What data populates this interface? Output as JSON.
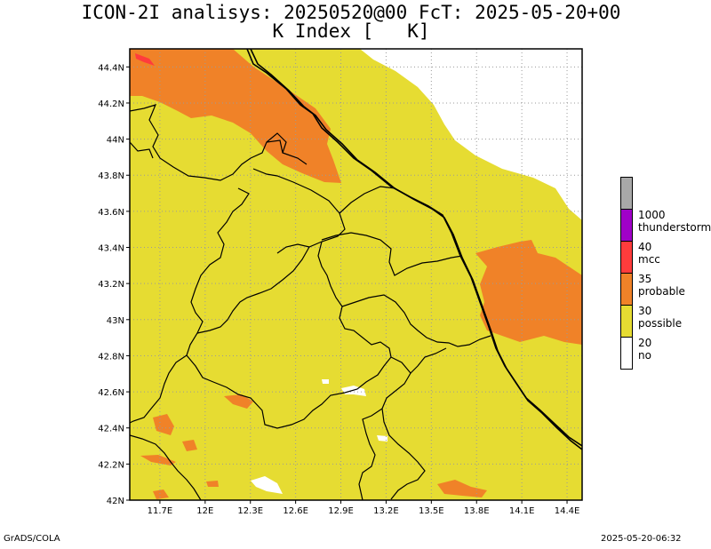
{
  "title": {
    "line1": "ICON-2I analisys: 20250520@00 FcT: 2025-05-20+00",
    "line2": "K Index [   K]"
  },
  "axes": {
    "lat_labels": [
      "44.4N",
      "44.2N",
      "44N",
      "43.8N",
      "43.6N",
      "43.4N",
      "43.2N",
      "43N",
      "42.8N",
      "42.6N",
      "42.4N",
      "42.2N",
      "42N"
    ],
    "lon_labels": [
      "11.7E",
      "12E",
      "12.3E",
      "12.6E",
      "12.9E",
      "13.2E",
      "13.5E",
      "13.8E",
      "14.1E",
      "14.4E"
    ],
    "lat_range": [
      42.0,
      44.5
    ],
    "lon_range": [
      11.5,
      14.5
    ]
  },
  "legend": [
    {
      "value": "",
      "name": "",
      "color": "#a8a8a8"
    },
    {
      "value": "1000",
      "name": "thunderstorm",
      "color": "#a000c8"
    },
    {
      "value": "40",
      "name": "mcc",
      "color": "#ff3c3c"
    },
    {
      "value": "35",
      "name": "probable",
      "color": "#f08228"
    },
    {
      "value": "30",
      "name": "possible",
      "color": "#e6dc32"
    },
    {
      "value": "20",
      "name": "no",
      "color": "#ffffff"
    }
  ],
  "footer": {
    "left": "GrADS/COLA",
    "right": "2025-05-20-06:32"
  }
}
